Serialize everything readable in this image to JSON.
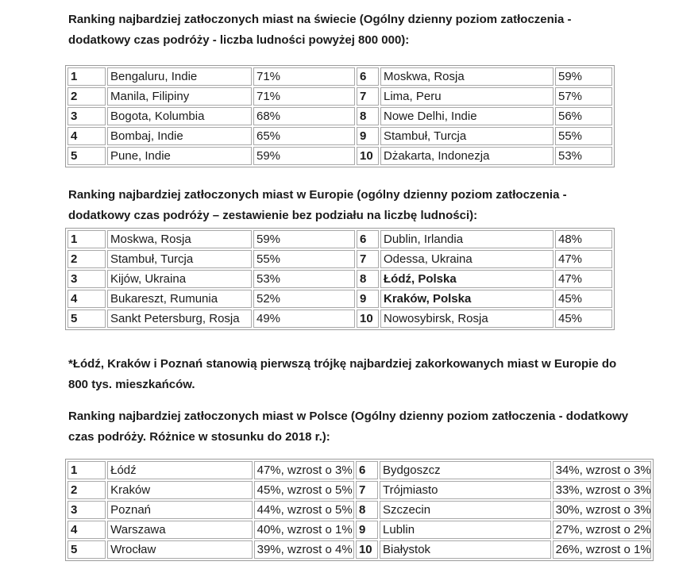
{
  "colors": {
    "background": "#ffffff",
    "text": "#1b1b1b",
    "table_outer_border": "#9b9b9b",
    "table_cell_border": "#a8a8a8"
  },
  "sections": {
    "world": {
      "heading_line1": "Ranking najbardziej zatłoczonych miast na świecie (Ogólny dzienny poziom zatłoczenia -",
      "heading_line2": "dodatkowy czas podróży - liczba ludności powyżej 800 000):",
      "rows": [
        {
          "rank_l": "1",
          "city_l": "Bengaluru, Indie",
          "val_l": "71%",
          "rank_r": "6",
          "city_r": "Moskwa, Rosja",
          "val_r": "59%"
        },
        {
          "rank_l": "2",
          "city_l": "Manila, Filipiny",
          "val_l": "71%",
          "rank_r": "7",
          "city_r": "Lima, Peru",
          "val_r": "57%"
        },
        {
          "rank_l": "3",
          "city_l": "Bogota, Kolumbia",
          "val_l": "68%",
          "rank_r": "8",
          "city_r": "Nowe Delhi, Indie",
          "val_r": "56%"
        },
        {
          "rank_l": "4",
          "city_l": "Bombaj, Indie",
          "val_l": "65%",
          "rank_r": "9",
          "city_r": "Stambuł, Turcja",
          "val_r": "55%"
        },
        {
          "rank_l": "5",
          "city_l": "Pune, Indie",
          "val_l": "59%",
          "rank_r": "10",
          "city_r": "Dżakarta, Indonezja",
          "val_r": "53%"
        }
      ]
    },
    "europe": {
      "heading_line1": "Ranking najbardziej zatłoczonych miast w Europie (ogólny dzienny poziom zatłoczenia -",
      "heading_line2": "dodatkowy czas podróży – zestawienie bez podziału na liczbę ludności):",
      "rows": [
        {
          "rank_l": "1",
          "city_l": "Moskwa, Rosja",
          "val_l": "59%",
          "rank_r": "6",
          "city_r": "Dublin, Irlandia",
          "val_r": "48%"
        },
        {
          "rank_l": "2",
          "city_l": "Stambuł, Turcja",
          "val_l": "55%",
          "rank_r": "7",
          "city_r": "Odessa, Ukraina",
          "val_r": "47%"
        },
        {
          "rank_l": "3",
          "city_l": "Kijów, Ukraina",
          "val_l": "53%",
          "rank_r": "8",
          "city_r": "Łódź, Polska",
          "val_r": "47%"
        },
        {
          "rank_l": "4",
          "city_l": "Bukareszt, Rumunia",
          "val_l": "52%",
          "rank_r": "9",
          "city_r": "Kraków, Polska",
          "val_r": "45%"
        },
        {
          "rank_l": "5",
          "city_l": "Sankt Petersburg, Rosja",
          "val_l": "49%",
          "rank_r": "10",
          "city_r": "Nowosybirsk, Rosja",
          "val_r": "45%"
        }
      ]
    },
    "note_line1": "*Łódź, Kraków i Poznań stanowią pierwszą trójkę najbardziej zakorkowanych miast w Europie do",
    "note_line2": "800 tys. mieszkańców.",
    "poland": {
      "heading_line1": "Ranking najbardziej zatłoczonych miast w Polsce (Ogólny dzienny poziom zatłoczenia - dodatkowy",
      "heading_line2": "czas podróży. Różnice w stosunku do 2018 r.):",
      "rows": [
        {
          "rank_l": "1",
          "city_l": "Łódź",
          "val_l": "47%, wzrost o 3%",
          "rank_r": "6",
          "city_r": "Bydgoszcz",
          "val_r": "34%, wzrost o 3%"
        },
        {
          "rank_l": "2",
          "city_l": "Kraków",
          "val_l": "45%, wzrost o 5%",
          "rank_r": "7",
          "city_r": "Trójmiasto",
          "val_r": "33%, wzrost o 3%"
        },
        {
          "rank_l": "3",
          "city_l": "Poznań",
          "val_l": "44%, wzrost o 5%",
          "rank_r": "8",
          "city_r": "Szczecin",
          "val_r": "30%, wzrost o 3%"
        },
        {
          "rank_l": "4",
          "city_l": "Warszawa",
          "val_l": "40%, wzrost o 1%",
          "rank_r": "9",
          "city_r": "Lublin",
          "val_r": "27%, wzrost o 2%"
        },
        {
          "rank_l": "5",
          "city_l": "Wrocław",
          "val_l": "39%, wzrost o 4%",
          "rank_r": "10",
          "city_r": "Białystok",
          "val_r": "26%, wzrost o 1%"
        }
      ]
    }
  }
}
